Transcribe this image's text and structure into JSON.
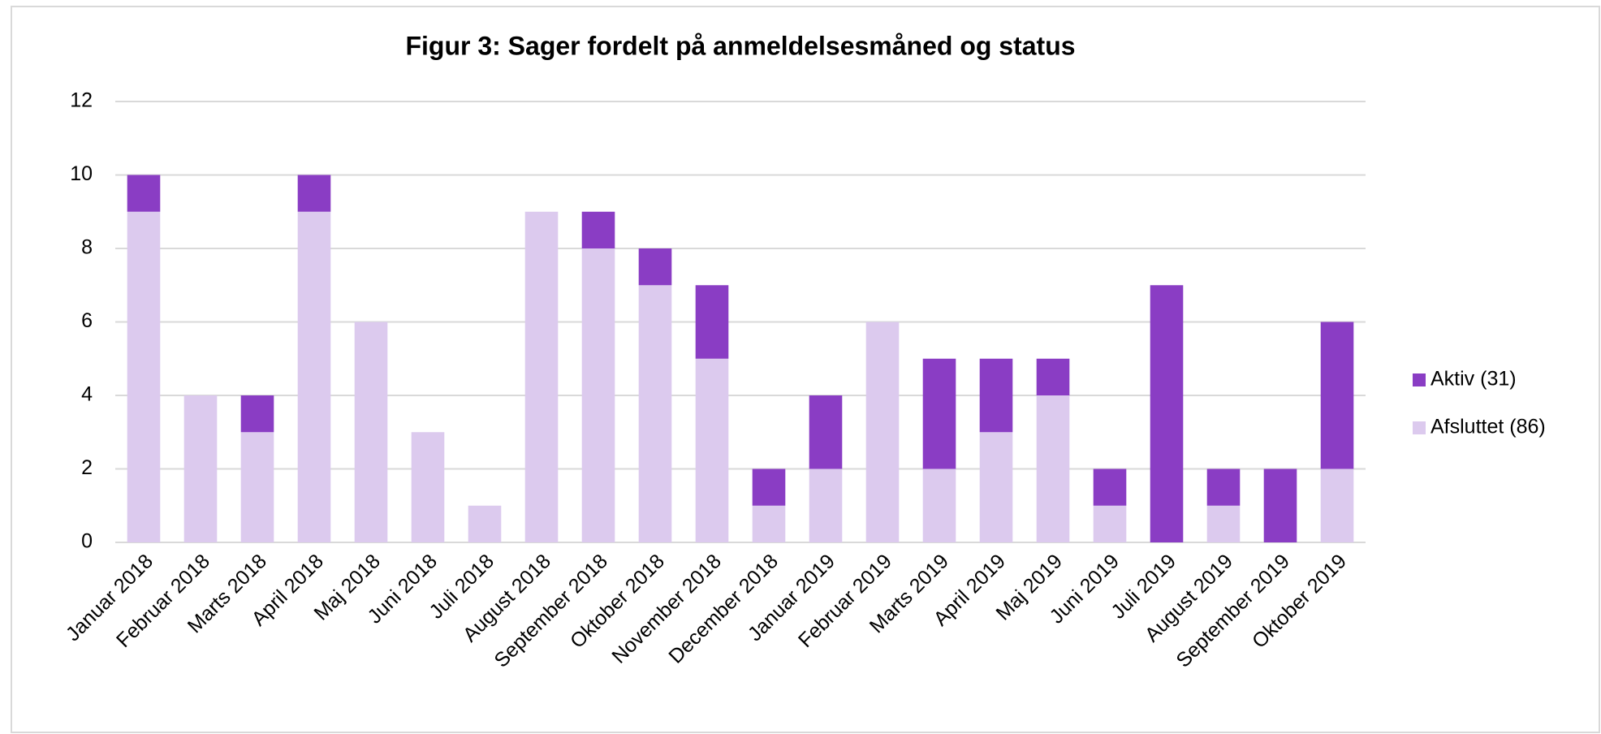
{
  "chart_data": {
    "type": "stacked_bar",
    "title": "Figur 3: Sager fordelt på anmeldelsesmåned  og status",
    "categories": [
      "Januar 2018",
      "Februar 2018",
      "Marts 2018",
      "April 2018",
      "Maj 2018",
      "Juni 2018",
      "Juli 2018",
      "August 2018",
      "September 2018",
      "Oktober 2018",
      "November 2018",
      "December 2018",
      "Januar 2019",
      "Februar 2019",
      "Marts 2019",
      "April 2019",
      "Maj 2019",
      "Juni 2019",
      "Juli 2019",
      "August 2019",
      "September 2019",
      "Oktober 2019"
    ],
    "series": [
      {
        "name": "Afsluttet (86)",
        "color": "#dccaee",
        "values": [
          9,
          4,
          3,
          9,
          6,
          3,
          1,
          9,
          8,
          7,
          5,
          1,
          2,
          6,
          2,
          3,
          4,
          1,
          0,
          1,
          0,
          2
        ]
      },
      {
        "name": "Aktiv (31)",
        "color": "#8a3dc4",
        "values": [
          1,
          0,
          1,
          1,
          0,
          0,
          0,
          0,
          1,
          1,
          2,
          1,
          2,
          0,
          3,
          2,
          1,
          1,
          7,
          1,
          2,
          4
        ]
      }
    ],
    "ylim": [
      0,
      12
    ],
    "yticks": [
      0,
      2,
      4,
      6,
      8,
      10,
      12
    ],
    "grid": true,
    "legend": "right"
  }
}
